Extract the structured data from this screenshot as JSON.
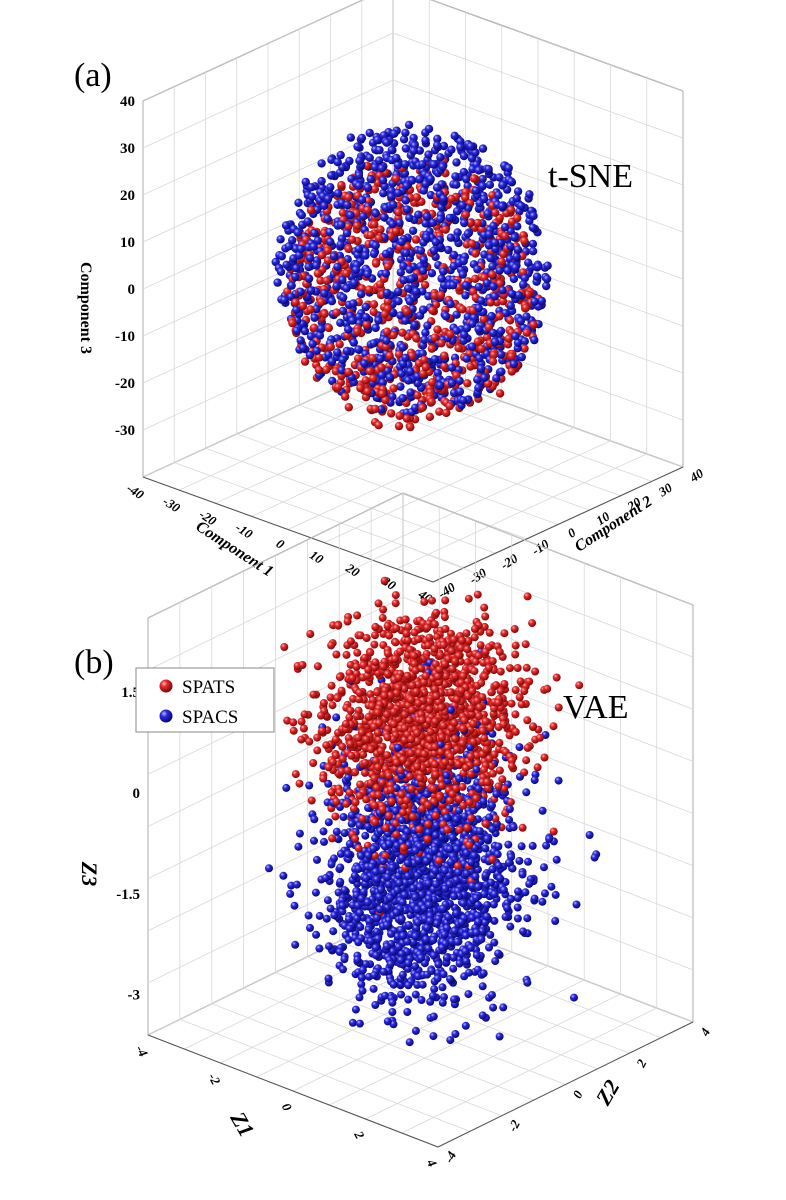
{
  "chart_data": [
    {
      "panel": "(a)",
      "type": "scatter",
      "method": "t-SNE",
      "dims": 3,
      "axes": {
        "x": {
          "label": "Component 1",
          "range": [
            -40,
            40
          ],
          "ticks": [
            "-40",
            "-30",
            "-20",
            "-10",
            "0",
            "10",
            "20",
            "30",
            "40"
          ]
        },
        "y": {
          "label": "Component 2",
          "range": [
            -40,
            40
          ],
          "ticks": [
            "-40",
            "-30",
            "-20",
            "-10",
            "0",
            "10",
            "20",
            "30",
            "40"
          ]
        },
        "z": {
          "label": "Component 3",
          "range": [
            -40,
            40
          ],
          "ticks": [
            "-30",
            "-20",
            "-10",
            "0",
            "10",
            "20",
            "30",
            "40"
          ]
        }
      },
      "grid": true,
      "series": [
        {
          "color": "#d21a1a",
          "distribution": "sphere",
          "center": [
            0,
            0,
            -2
          ],
          "radius": 27,
          "count": 650
        },
        {
          "color": "#2222c8",
          "distribution": "sphere",
          "center": [
            0,
            0,
            3
          ],
          "radius": 29,
          "count": 1100
        }
      ]
    },
    {
      "panel": "(b)",
      "type": "scatter",
      "method": "VAE",
      "dims": 3,
      "axes": {
        "x": {
          "label": "Z1",
          "range": [
            -4,
            4
          ],
          "ticks": [
            "-4",
            "-2",
            "0",
            "2",
            "4"
          ]
        },
        "y": {
          "label": "Z2",
          "range": [
            -4,
            4
          ],
          "ticks": [
            "-4",
            "-2",
            "0",
            "2",
            "4"
          ]
        },
        "z": {
          "label": "Z3",
          "range": [
            -3.6,
            2.6
          ],
          "ticks": [
            "-3",
            "-1.5",
            "0",
            "1.5"
          ]
        }
      },
      "grid": true,
      "legend": {
        "position": "top-left"
      },
      "series": [
        {
          "name": "SPATS",
          "color": "#d21a1a",
          "distribution": "gaussian",
          "center": [
            0,
            0,
            1.0
          ],
          "spread": [
            1.0,
            1.0,
            0.75
          ],
          "count": 1500
        },
        {
          "name": "SPACS",
          "color": "#2222c8",
          "distribution": "gaussian",
          "center": [
            0,
            0,
            -1.3
          ],
          "spread": [
            1.0,
            1.0,
            0.9
          ],
          "count": 1800
        }
      ]
    }
  ]
}
